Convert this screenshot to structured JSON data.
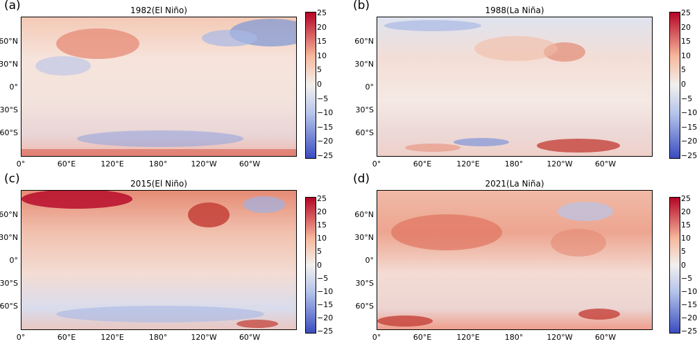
{
  "panels": [
    {
      "label": "(a)",
      "title": "1982(El Niño)"
    },
    {
      "label": "(b)",
      "title": "1988(La Niña)"
    },
    {
      "label": "(c)",
      "title": "2015(El Niño)"
    },
    {
      "label": "(d)",
      "title": "2021(La Niña)"
    }
  ],
  "lat_labels": [
    "60°N",
    "30°N",
    "0°",
    "30°S",
    "60°S"
  ],
  "lon_labels": [
    "0°",
    "60°E",
    "120°E",
    "180°",
    "120°W",
    "60°W"
  ],
  "colorbar": {
    "ticks": [
      "25",
      "20",
      "15",
      "10",
      "5",
      "0",
      "−5",
      "−10",
      "−15",
      "−20",
      "−25"
    ],
    "range": [
      -25,
      25
    ],
    "low_color": "#3b4cc0",
    "mid_color": "#f2f0ee",
    "high_color": "#b40426"
  }
}
